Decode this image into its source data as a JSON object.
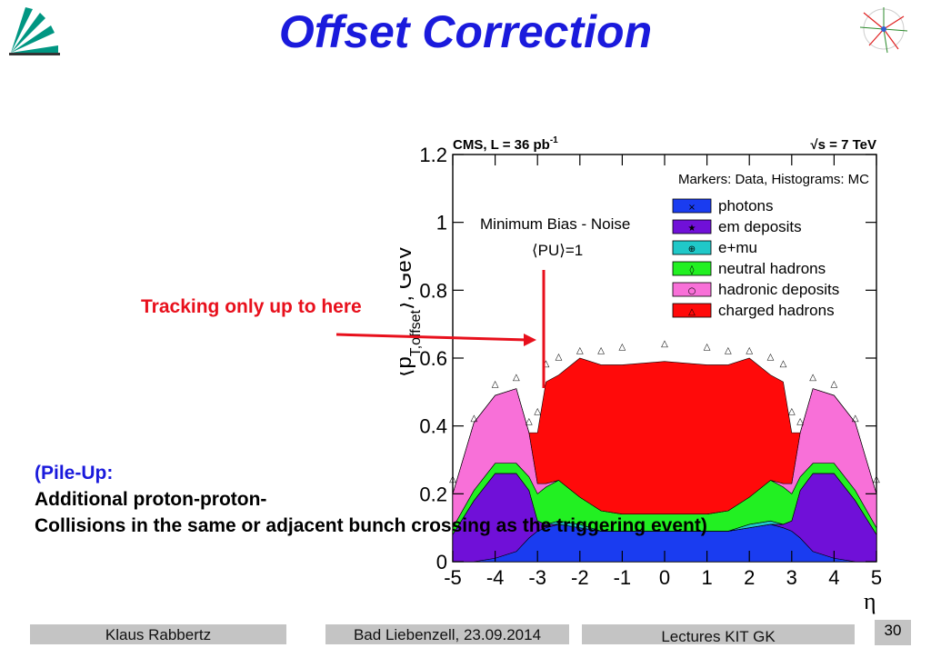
{
  "slide": {
    "title": "Offset Correction",
    "annotation": "Tracking only up to here",
    "pileup_lines": [
      "(Pile-Up:",
      "Additional proton-proton-",
      "Collisions in the same or adjacent bunch crossing as the triggering event)"
    ]
  },
  "footer": {
    "author": "Klaus Rabbertz",
    "venue": "Bad Liebenzell, 23.09.2014",
    "series": "Lectures KIT GK",
    "page": "30"
  },
  "colors": {
    "title": "#1a1adc",
    "annotation": "#e8101c",
    "footer_box": "#c4c4c4"
  },
  "chart_data": {
    "type": "area",
    "stacked": true,
    "title_left": "CMS, L = 36 pb",
    "title_left_sup": "-1",
    "title_right": "√s = 7 TeV",
    "marker_note": "Markers: Data, Histograms: MC",
    "text_note": "Minimum Bias - Noise",
    "pu_note": "⟨PU⟩=1",
    "xlabel": "η",
    "ylabel": "⟨p",
    "ylabel_sub": "T,offset",
    "ylabel_end": "⟩, GeV",
    "xlim": [
      -5,
      5
    ],
    "ylim": [
      0,
      1.2
    ],
    "x_ticks": [
      "-5",
      "-4",
      "-3",
      "-2",
      "-1",
      "0",
      "1",
      "2",
      "3",
      "4",
      "5"
    ],
    "y_ticks": [
      "0",
      "0.2",
      "0.4",
      "0.6",
      "0.8",
      "1",
      "1.2"
    ],
    "x": [
      -5,
      -4.5,
      -4,
      -3.5,
      -3.2,
      -3,
      -2.8,
      -2.5,
      -2,
      -1.5,
      -1,
      0,
      1,
      1.5,
      2,
      2.5,
      2.8,
      3,
      3.2,
      3.5,
      4,
      4.5,
      5
    ],
    "series": [
      {
        "name": "photons",
        "color": "#1a3cf0",
        "marker": "×",
        "values": [
          0,
          0,
          0.01,
          0.03,
          0.07,
          0.09,
          0.1,
          0.11,
          0.1,
          0.09,
          0.09,
          0.09,
          0.09,
          0.09,
          0.1,
          0.11,
          0.1,
          0.09,
          0.07,
          0.03,
          0.01,
          0,
          0
        ]
      },
      {
        "name": "em deposits",
        "color": "#7010d8",
        "marker": "★",
        "values": [
          0.08,
          0.18,
          0.25,
          0.23,
          0.14,
          0.03,
          0.01,
          0,
          0,
          0,
          0,
          0,
          0,
          0,
          0,
          0,
          0.01,
          0.03,
          0.14,
          0.23,
          0.25,
          0.18,
          0.08
        ]
      },
      {
        "name": "e+mu",
        "color": "#20c8c8",
        "marker": "⊕",
        "values": [
          0,
          0,
          0,
          0,
          0,
          0,
          0,
          0.01,
          0.01,
          0,
          0,
          0,
          0,
          0,
          0.01,
          0.01,
          0,
          0,
          0,
          0,
          0,
          0,
          0
        ]
      },
      {
        "name": "neutral hadrons",
        "color": "#22f022",
        "marker": "◊",
        "values": [
          0.02,
          0.03,
          0.03,
          0.03,
          0.04,
          0.08,
          0.11,
          0.12,
          0.08,
          0.06,
          0.05,
          0.05,
          0.05,
          0.06,
          0.08,
          0.12,
          0.11,
          0.08,
          0.04,
          0.03,
          0.03,
          0.03,
          0.02
        ]
      },
      {
        "name": "hadronic deposits",
        "color": "#f870d8",
        "marker": "○",
        "values": [
          0.1,
          0.2,
          0.2,
          0.22,
          0.13,
          0.03,
          0.01,
          0,
          0,
          0,
          0,
          0,
          0,
          0,
          0,
          0,
          0.01,
          0.03,
          0.13,
          0.22,
          0.2,
          0.2,
          0.1
        ]
      },
      {
        "name": "charged hadrons",
        "color": "#ff0a0a",
        "marker": "△",
        "values": [
          0,
          0,
          0,
          0,
          0,
          0.15,
          0.3,
          0.31,
          0.41,
          0.43,
          0.44,
          0.45,
          0.44,
          0.43,
          0.41,
          0.31,
          0.3,
          0.15,
          0,
          0,
          0,
          0,
          0
        ]
      }
    ],
    "data_total": [
      0.23,
      0.41,
      0.51,
      0.53,
      0.4,
      0.43,
      0.57,
      0.59,
      0.61,
      0.61,
      0.62,
      0.63,
      0.62,
      0.61,
      0.61,
      0.59,
      0.57,
      0.43,
      0.4,
      0.53,
      0.51,
      0.41,
      0.23
    ]
  }
}
